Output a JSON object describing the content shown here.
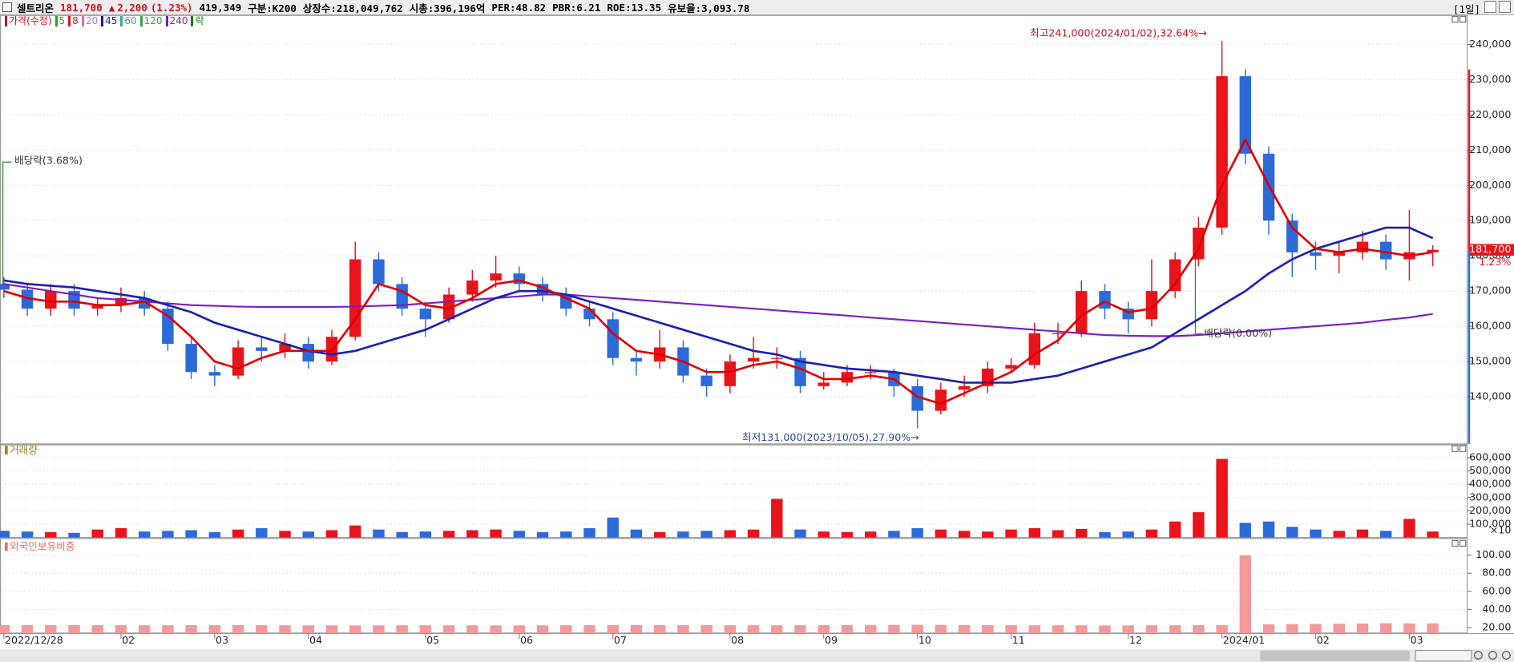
{
  "header": {
    "name": "셀트리온",
    "price": "181,700",
    "arrow": "▲",
    "change": "2,200",
    "change_pct": "(1.23%)",
    "volume": "419,349",
    "items": [
      "구분:K200",
      "상장수:218,049,762",
      "시총:396,196억",
      "PER:48.82",
      "PBR:6.21",
      "ROE:13.35",
      "유보율:3,093.78"
    ],
    "period": "[1일]"
  },
  "chart_data": [
    {
      "type": "candlestick",
      "legend": [
        {
          "name": "가격(수정)",
          "color": "#c01020"
        },
        {
          "name": "5",
          "color": "#22a822"
        },
        {
          "name": "8",
          "color": "#e8141b"
        },
        {
          "name": "20",
          "color": "#d070c0"
        },
        {
          "name": "45",
          "color": "#1a1aa0"
        },
        {
          "name": "60",
          "color": "#3aa0a0"
        },
        {
          "name": "120",
          "color": "#3aa040"
        },
        {
          "name": "240",
          "color": "#7a1fa0"
        },
        {
          "name": "락",
          "color": "#1a7a1a"
        }
      ],
      "categories": [
        "2022/12/28",
        null,
        null,
        null,
        null,
        "02",
        null,
        null,
        null,
        "03",
        null,
        null,
        null,
        "04",
        null,
        null,
        null,
        null,
        "05",
        null,
        null,
        null,
        "06",
        null,
        null,
        null,
        "07",
        null,
        null,
        null,
        null,
        "08",
        null,
        null,
        null,
        "09",
        null,
        null,
        null,
        "10",
        null,
        null,
        null,
        "11",
        null,
        null,
        null,
        null,
        "12",
        null,
        null,
        null,
        "2024/01",
        null,
        null,
        null,
        "02",
        null,
        null,
        null,
        "03",
        null
      ],
      "open": [
        172000,
        170400,
        165000,
        170000,
        165000,
        166000,
        168000,
        165000,
        155000,
        147000,
        146000,
        154000,
        153000,
        155000,
        150000,
        157000,
        179000,
        172000,
        165000,
        162000,
        169000,
        173000,
        175000,
        172000,
        169000,
        165000,
        162000,
        151000,
        150000,
        154000,
        146000,
        143000,
        150000,
        151000,
        151000,
        143000,
        144000,
        147000,
        147000,
        143000,
        136000,
        142000,
        143000,
        148000,
        149000,
        158000,
        158000,
        170000,
        165000,
        162000,
        170000,
        179000,
        188000,
        231000,
        209000,
        190000,
        181000,
        180000,
        181000,
        184000,
        179000,
        181000
      ],
      "high": [
        174000,
        172000,
        172000,
        172000,
        168000,
        171000,
        170000,
        167000,
        157000,
        149000,
        156000,
        157000,
        158000,
        157000,
        159000,
        184000,
        181000,
        174000,
        167000,
        171000,
        176000,
        180000,
        177000,
        174000,
        171000,
        167000,
        164000,
        153000,
        159000,
        156000,
        148000,
        152000,
        157000,
        154000,
        153000,
        147000,
        149000,
        149000,
        148000,
        145000,
        144000,
        146000,
        150000,
        151000,
        161000,
        161000,
        173000,
        172000,
        167000,
        179000,
        181000,
        191000,
        241000,
        233000,
        211000,
        192000,
        184000,
        184000,
        187000,
        186000,
        193000,
        183000
      ],
      "low": [
        168000,
        163000,
        163000,
        163000,
        163000,
        164000,
        163000,
        153000,
        145000,
        143000,
        145000,
        150000,
        151000,
        148000,
        149000,
        156000,
        170000,
        163000,
        157000,
        161000,
        167000,
        171000,
        170000,
        167000,
        163000,
        160000,
        149000,
        146000,
        148000,
        144000,
        140000,
        141000,
        148000,
        148000,
        141000,
        142000,
        143000,
        145000,
        140000,
        131000,
        135000,
        140000,
        141000,
        147000,
        148000,
        155000,
        157000,
        162000,
        158000,
        160000,
        168000,
        177000,
        186000,
        206000,
        186000,
        174000,
        176000,
        175000,
        179000,
        176000,
        173000,
        177000
      ],
      "close": [
        170400,
        165000,
        170000,
        165000,
        166000,
        168000,
        165000,
        155000,
        147000,
        146000,
        154000,
        153000,
        155000,
        150000,
        157000,
        179000,
        172000,
        165000,
        162000,
        169000,
        173000,
        175000,
        172000,
        169000,
        165000,
        162000,
        151000,
        150000,
        154000,
        146000,
        143000,
        150000,
        151000,
        151000,
        143000,
        144000,
        147000,
        147000,
        143000,
        136000,
        142000,
        143000,
        148000,
        149000,
        158000,
        158000,
        170000,
        165000,
        162000,
        170000,
        179000,
        188000,
        231000,
        209000,
        190000,
        181000,
        180000,
        181000,
        184000,
        179000,
        181000,
        181700
      ],
      "up_color": "#e8141b",
      "down_color": "#2c6ad8",
      "ma_series": [
        {
          "color": "#7a1fc0",
          "width": 1.8,
          "values": [
            172000,
            171000,
            170000,
            169000,
            168000,
            167500,
            167000,
            166500,
            166000,
            165800,
            165600,
            165500,
            165500,
            165500,
            165500,
            165600,
            165800,
            166000,
            166500,
            167000,
            167500,
            168000,
            168500,
            169000,
            169000,
            168500,
            168000,
            167500,
            167000,
            166500,
            166000,
            165500,
            165000,
            164500,
            164000,
            163500,
            163000,
            162500,
            162000,
            161500,
            161000,
            160500,
            160000,
            159500,
            159000,
            158500,
            158000,
            157500,
            157300,
            157200,
            157200,
            157500,
            158000,
            158500,
            159000,
            159500,
            160000,
            160500,
            161000,
            161800,
            162500,
            163500
          ]
        },
        {
          "color": "#1a20b0",
          "width": 2.2,
          "values": [
            173000,
            172000,
            171500,
            171000,
            170000,
            169000,
            168000,
            166000,
            164000,
            161000,
            159000,
            157000,
            155000,
            153000,
            152000,
            153000,
            155000,
            157000,
            159000,
            162000,
            165000,
            168000,
            170000,
            170000,
            169000,
            167000,
            165000,
            163000,
            161000,
            159000,
            157000,
            155000,
            153000,
            152000,
            150000,
            149000,
            148000,
            147500,
            147000,
            146000,
            145000,
            144000,
            144000,
            144000,
            145000,
            146000,
            148000,
            150000,
            152000,
            154000,
            158000,
            162000,
            166000,
            170000,
            175000,
            179000,
            182000,
            184000,
            186000,
            188000,
            188000,
            185000
          ]
        },
        {
          "color": "#e00000",
          "width": 2.2,
          "values": [
            170000,
            168000,
            167000,
            167000,
            166000,
            166000,
            167000,
            163000,
            157000,
            150000,
            148000,
            151000,
            153000,
            153000,
            153000,
            162000,
            172000,
            170000,
            166000,
            165000,
            168000,
            172000,
            173000,
            171000,
            168000,
            165000,
            158000,
            153000,
            152000,
            150000,
            147000,
            147000,
            149000,
            150000,
            148000,
            145000,
            145000,
            146000,
            145000,
            140000,
            138000,
            141000,
            144000,
            147000,
            152000,
            156000,
            163000,
            167000,
            164000,
            165000,
            172000,
            182000,
            200000,
            213000,
            200000,
            188000,
            182000,
            181000,
            182000,
            181000,
            180000,
            181000
          ]
        }
      ],
      "ylim": [
        126600,
        247700
      ],
      "yticks": [
        {
          "value": 140000,
          "label": "140,000"
        },
        {
          "value": 150000,
          "label": "150,000"
        },
        {
          "value": 160000,
          "label": "160,000"
        },
        {
          "value": 170000,
          "label": "170,000"
        },
        {
          "value": 180000,
          "label": "180,000"
        },
        {
          "value": 190000,
          "label": "190,000"
        },
        {
          "value": 200000,
          "label": "200,000"
        },
        {
          "value": 210000,
          "label": "210,000"
        },
        {
          "value": 220000,
          "label": "220,000"
        },
        {
          "value": 230000,
          "label": "230,000"
        },
        {
          "value": 240000,
          "label": "240,000"
        }
      ],
      "annotations": [
        {
          "text": "최고241,000(2024/01/02),32.64%→",
          "color": "#c01020"
        },
        {
          "text": "최저131,000(2023/10/05),27.90%→",
          "color": "#2a4a9a"
        },
        {
          "text": "배당락(3.68%)",
          "color": "#333333"
        },
        {
          "text": "배당락(0.00%)",
          "color": "#333333"
        }
      ],
      "last_label": "181,700",
      "last_change": "1.23%"
    },
    {
      "type": "bar",
      "title": "거래량",
      "title_color": "#a08020",
      "values": [
        50000,
        45000,
        40000,
        35000,
        60000,
        70000,
        45000,
        50000,
        55000,
        40000,
        60000,
        70000,
        50000,
        45000,
        55000,
        90000,
        60000,
        40000,
        45000,
        50000,
        55000,
        60000,
        50000,
        40000,
        45000,
        70000,
        150000,
        60000,
        40000,
        45000,
        50000,
        55000,
        60000,
        290000,
        60000,
        45000,
        40000,
        45000,
        50000,
        70000,
        60000,
        50000,
        45000,
        60000,
        70000,
        55000,
        65000,
        40000,
        45000,
        60000,
        120000,
        190000,
        590000,
        110000,
        120000,
        80000,
        60000,
        50000,
        60000,
        50000,
        140000,
        45000
      ],
      "ylim": [
        0,
        630000
      ],
      "yticks": [
        {
          "value": 100000,
          "label": "100,000"
        },
        {
          "value": 200000,
          "label": "200,000"
        },
        {
          "value": 300000,
          "label": "300,000"
        },
        {
          "value": 400000,
          "label": "400,000"
        },
        {
          "value": 500000,
          "label": "500,000"
        },
        {
          "value": 600000,
          "label": "600,000"
        }
      ],
      "unit": "×10"
    },
    {
      "type": "bar",
      "title": "외국인보유비중",
      "title_color": "#e07070",
      "color": "#f29a9a",
      "values": [
        22.9,
        22.9,
        22.8,
        22.8,
        22.7,
        22.7,
        22.6,
        22.6,
        22.7,
        22.8,
        22.8,
        22.7,
        22.6,
        22.5,
        22.5,
        22.4,
        22.5,
        22.6,
        22.6,
        22.5,
        22.5,
        22.4,
        22.4,
        22.5,
        22.6,
        22.7,
        22.8,
        22.9,
        22.9,
        22.8,
        22.8,
        22.7,
        22.7,
        22.6,
        22.7,
        22.8,
        22.9,
        23.0,
        23.0,
        23.1,
        23.0,
        22.9,
        22.8,
        22.7,
        22.6,
        22.6,
        22.5,
        22.4,
        22.4,
        22.5,
        22.6,
        22.8,
        22.9,
        99.8,
        23.6,
        23.8,
        24.0,
        24.2,
        24.5,
        24.8,
        24.6,
        24.7
      ],
      "ylim": [
        14,
        113
      ],
      "yticks": [
        {
          "value": 20,
          "label": "20.00"
        },
        {
          "value": 40,
          "label": "40.00"
        },
        {
          "value": 60,
          "label": "60.00"
        },
        {
          "value": 80,
          "label": "80.00"
        },
        {
          "value": 100,
          "label": "100.00"
        }
      ]
    }
  ]
}
